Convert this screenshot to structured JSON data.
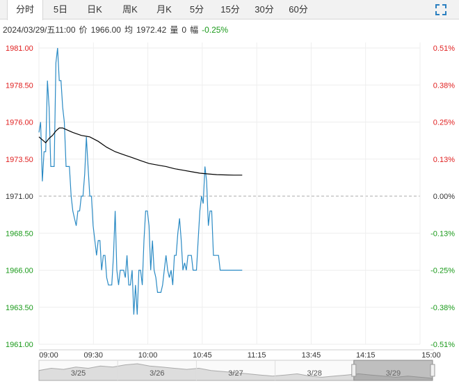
{
  "tabs": [
    {
      "label": "分时",
      "active": true
    },
    {
      "label": "5日",
      "active": false
    },
    {
      "label": "日K",
      "active": false
    },
    {
      "label": "周K",
      "active": false
    },
    {
      "label": "月K",
      "active": false
    },
    {
      "label": "5分",
      "active": false
    },
    {
      "label": "15分",
      "active": false
    },
    {
      "label": "30分",
      "active": false
    },
    {
      "label": "60分",
      "active": false
    }
  ],
  "fullscreen_icon": "fullscreen-icon",
  "info": {
    "datetime": "2024/03/29/五11:00",
    "price_label": "价",
    "price": "1966.00",
    "avg_label": "均",
    "avg": "1972.42",
    "volume_label": "量",
    "volume": "0",
    "change_label": "幅",
    "change": "-0.25%"
  },
  "colors": {
    "price_line": "#2a8ac4",
    "avg_line": "#000000",
    "up": "#e02020",
    "down": "#1a9a1a",
    "neutral": "#333333",
    "grid": "#eeeeee",
    "baseline": "#aaaaaa",
    "navigator_fill": "#dddddd",
    "navigator_handle": "#999999"
  },
  "chart_data": {
    "type": "line",
    "prev_close": 1971.0,
    "ylim": [
      1961.0,
      1981.0
    ],
    "y_ticks": [
      "1981.00",
      "1978.50",
      "1976.00",
      "1973.50",
      "1971.00",
      "1968.50",
      "1966.00",
      "1963.50",
      "1961.00"
    ],
    "pct_ticks": [
      "0.51%",
      "0.38%",
      "0.25%",
      "0.13%",
      "0.00%",
      "-0.13%",
      "-0.25%",
      "-0.38%",
      "-0.51%"
    ],
    "x_ticks": [
      "09:00",
      "09:30",
      "10:00",
      "10:45",
      "11:15",
      "13:45",
      "14:15",
      "15:00"
    ],
    "session_minutes": 225,
    "grid": true,
    "series": [
      {
        "name": "价",
        "x": [
          0,
          1,
          2,
          3,
          4,
          5,
          6,
          7,
          8,
          9,
          10,
          11,
          12,
          13,
          14,
          15,
          16,
          17,
          18,
          19,
          20,
          21,
          22,
          23,
          24,
          25,
          26,
          27,
          28,
          29,
          30,
          31,
          32,
          33,
          34,
          35,
          36,
          37,
          38,
          39,
          40,
          41,
          42,
          43,
          44,
          45,
          46,
          47,
          48,
          49,
          50,
          51,
          52,
          53,
          54,
          55,
          56,
          57,
          58,
          59,
          60,
          61,
          62,
          63,
          64,
          65,
          66,
          67,
          68,
          69,
          70,
          71,
          72,
          73,
          74,
          75,
          76,
          77,
          78,
          79,
          80,
          81,
          82,
          83,
          84,
          85,
          86,
          87,
          88,
          89,
          90,
          91,
          92,
          93,
          94,
          95,
          96,
          97,
          98,
          99,
          100,
          101,
          102,
          103,
          104,
          105,
          106,
          107,
          108,
          109,
          110,
          111,
          112,
          113,
          114,
          115,
          116,
          117,
          118,
          119,
          120
        ],
        "values": [
          1975.3,
          1976.0,
          1972.0,
          1974.0,
          1974.0,
          1978.8,
          1977.0,
          1973.0,
          1973.0,
          1973.0,
          1980.0,
          1981.0,
          1978.8,
          1978.8,
          1977.0,
          1976.0,
          1973.0,
          1973.0,
          1973.0,
          1971.0,
          1970.0,
          1969.5,
          1969.0,
          1970.0,
          1970.0,
          1971.0,
          1971.0,
          1972.5,
          1975.0,
          1973.0,
          1971.0,
          1971.0,
          1969.0,
          1968.0,
          1967.0,
          1968.0,
          1968.0,
          1966.0,
          1967.0,
          1967.0,
          1965.5,
          1965.0,
          1965.0,
          1965.0,
          1967.0,
          1970.0,
          1966.0,
          1965.0,
          1966.0,
          1966.0,
          1966.0,
          1965.5,
          1967.0,
          1965.0,
          1965.0,
          1966.0,
          1963.0,
          1965.0,
          1963.0,
          1966.0,
          1966.0,
          1965.0,
          1968.0,
          1970.0,
          1970.0,
          1969.0,
          1966.0,
          1968.0,
          1966.0,
          1965.5,
          1964.5,
          1964.5,
          1964.5,
          1965.0,
          1966.0,
          1967.0,
          1966.0,
          1965.5,
          1966.0,
          1965.0,
          1967.0,
          1967.0,
          1968.5,
          1969.5,
          1968.0,
          1966.0,
          1966.5,
          1966.0,
          1967.0,
          1967.0,
          1967.0,
          1966.0,
          1966.0,
          1966.0,
          1968.0,
          1970.0,
          1971.0,
          1970.5,
          1973.0,
          1972.0,
          1969.0,
          1970.0,
          1970.0,
          1967.0,
          1967.0,
          1967.0,
          1967.0,
          1966.0,
          1966.0,
          1966.0,
          1966.0,
          1966.0,
          1966.0,
          1966.0,
          1966.0,
          1966.0,
          1966.0,
          1966.0,
          1966.0,
          1966.0,
          1966.0
        ]
      },
      {
        "name": "均",
        "x": [
          0,
          2,
          4,
          6,
          8,
          10,
          12,
          14,
          16,
          18,
          20,
          25,
          30,
          35,
          40,
          45,
          50,
          55,
          60,
          65,
          70,
          75,
          80,
          85,
          90,
          95,
          100,
          105,
          110,
          115,
          120
        ],
        "values": [
          1975.0,
          1974.8,
          1974.6,
          1974.9,
          1975.1,
          1975.4,
          1975.6,
          1975.6,
          1975.5,
          1975.4,
          1975.3,
          1975.1,
          1975.0,
          1974.7,
          1974.3,
          1974.0,
          1973.8,
          1973.6,
          1973.4,
          1973.2,
          1973.1,
          1973.0,
          1972.85,
          1972.75,
          1972.65,
          1972.55,
          1972.5,
          1972.45,
          1972.43,
          1972.42,
          1972.42
        ]
      }
    ],
    "navigator": {
      "labels": [
        "3/25",
        "3/26",
        "3/27",
        "3/28",
        "3/29"
      ],
      "selected_label": "3/29",
      "profile": [
        1973,
        1975,
        1974,
        1976,
        1975,
        1977,
        1976,
        1978,
        1979,
        1977,
        1976,
        1975,
        1974,
        1975,
        1973,
        1972,
        1971,
        1970,
        1969,
        1968,
        1969,
        1970,
        1968,
        1967,
        1968,
        1969,
        1970,
        1969,
        1968,
        1967,
        1968,
        1967,
        1966
      ]
    }
  }
}
